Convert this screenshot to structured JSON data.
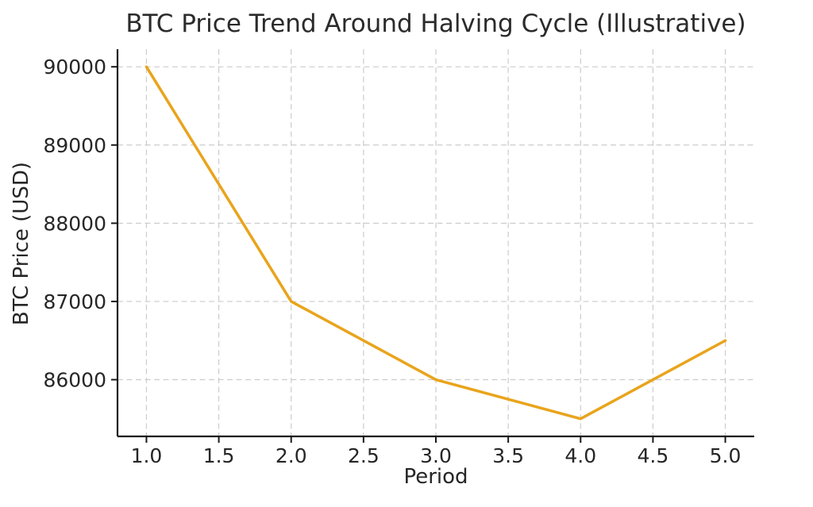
{
  "chart_data": {
    "type": "line",
    "title": "BTC Price Trend Around Halving Cycle (Illustrative)",
    "xlabel": "Period",
    "ylabel": "BTC Price (USD)",
    "x": [
      1,
      2,
      3,
      4,
      5
    ],
    "series": [
      {
        "name": "BTC Price",
        "values": [
          90000,
          87000,
          86000,
          85500,
          86500
        ]
      }
    ],
    "xlim": [
      0.8,
      5.2
    ],
    "ylim": [
      85275,
      90225
    ],
    "xticks": [
      1.0,
      1.5,
      2.0,
      2.5,
      3.0,
      3.5,
      4.0,
      4.5,
      5.0
    ],
    "xtick_labels": [
      "1.0",
      "1.5",
      "2.0",
      "2.5",
      "3.0",
      "3.5",
      "4.0",
      "4.5",
      "5.0"
    ],
    "yticks": [
      86000,
      87000,
      88000,
      89000,
      90000
    ],
    "ytick_labels": [
      "86000",
      "87000",
      "88000",
      "89000",
      "90000"
    ],
    "grid": true,
    "legend": "none",
    "colors": {
      "line": "#E9A41C",
      "grid": "#CCCCCC",
      "spine": "#1A1A1A",
      "text": "#262626",
      "background": "#FFFFFF"
    }
  }
}
